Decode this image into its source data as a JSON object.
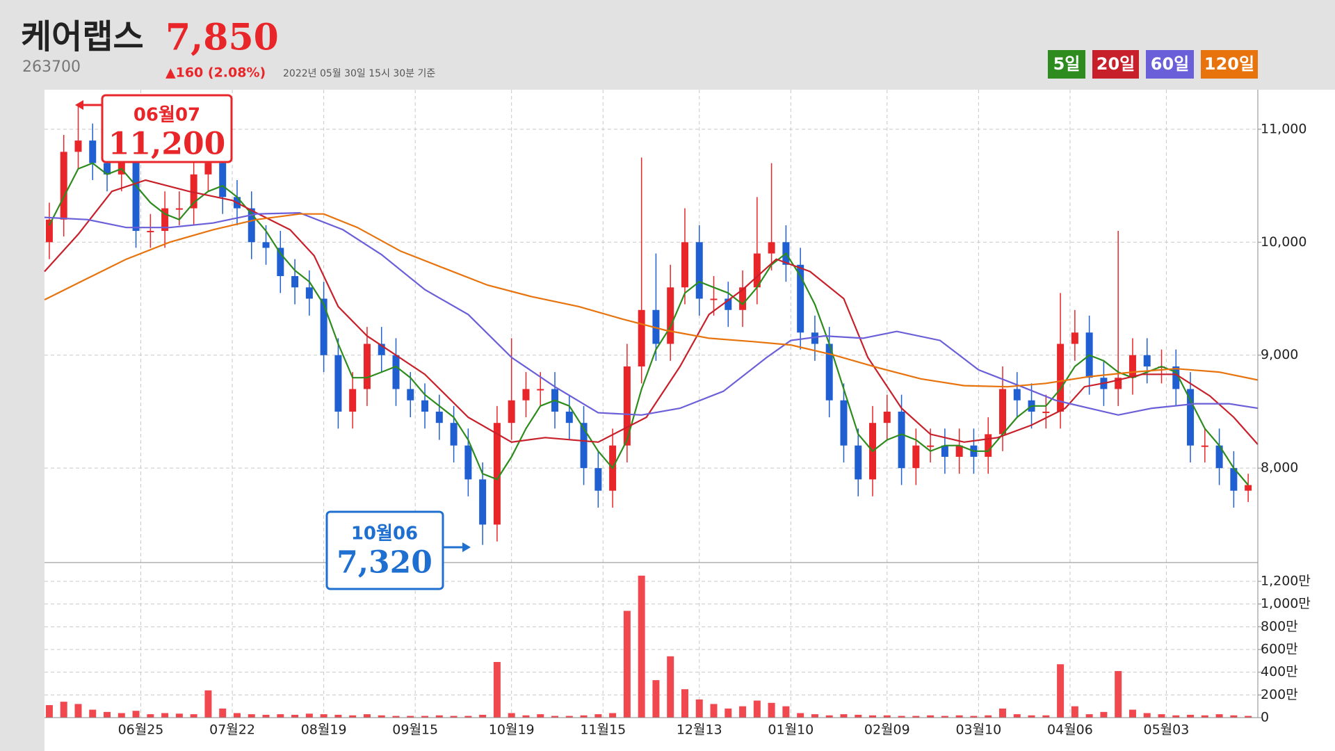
{
  "header": {
    "name": "케어랩스",
    "price": "7,850",
    "code": "263700",
    "change": "▲160 (2.08%)",
    "timestamp": "2022년 05월 30일 15시 30분 기준"
  },
  "chart_data": {
    "type": "candlestick",
    "up_color": "#e8262a",
    "down_color": "#1f5fd1",
    "volume_color": "#f0484e",
    "grid": true,
    "xlim": [
      0,
      252
    ],
    "xticks": [
      {
        "value": 20,
        "label": "06월25"
      },
      {
        "value": 39,
        "label": "07월22"
      },
      {
        "value": 58,
        "label": "08월19"
      },
      {
        "value": 77,
        "label": "09월15"
      },
      {
        "value": 97,
        "label": "10월19"
      },
      {
        "value": 116,
        "label": "11월15"
      },
      {
        "value": 136,
        "label": "12월13"
      },
      {
        "value": 155,
        "label": "01월10"
      },
      {
        "value": 175,
        "label": "02월09"
      },
      {
        "value": 194,
        "label": "03월10"
      },
      {
        "value": 213,
        "label": "04월06"
      },
      {
        "value": 233,
        "label": "05월03"
      }
    ],
    "ylim": [
      7170,
      11350
    ],
    "yticks": [
      {
        "value": 8000,
        "label": "8,000"
      },
      {
        "value": 9000,
        "label": "9,000"
      },
      {
        "value": 10000,
        "label": "10,000"
      },
      {
        "value": 11000,
        "label": "11,000"
      }
    ],
    "volume_ylim": [
      0,
      13530000
    ],
    "volume_yticks": [
      0,
      {
        "value": 2000000,
        "label": "200만"
      },
      {
        "value": 4000000,
        "label": "400만"
      },
      {
        "value": 6000000,
        "label": "600만"
      },
      {
        "value": 8000000,
        "label": "800만"
      },
      {
        "value": 10000000,
        "label": "1,000만"
      },
      {
        "value": 12000000,
        "label": "1,200만"
      }
    ],
    "candles": {
      "x": [
        1,
        4,
        7,
        10,
        13,
        16,
        19,
        22,
        25,
        28,
        31,
        34,
        37,
        40,
        43,
        46,
        49,
        52,
        55,
        58,
        61,
        64,
        67,
        70,
        73,
        76,
        79,
        82,
        85,
        88,
        91,
        94,
        97,
        100,
        103,
        106,
        109,
        112,
        115,
        118,
        121,
        124,
        127,
        130,
        133,
        136,
        139,
        142,
        145,
        148,
        151,
        154,
        157,
        160,
        163,
        166,
        169,
        172,
        175,
        178,
        181,
        184,
        187,
        190,
        193,
        196,
        199,
        202,
        205,
        208,
        211,
        214,
        217,
        220,
        223,
        226,
        229,
        232,
        235,
        238,
        241,
        244,
        247,
        250
      ],
      "open": [
        10000,
        10200,
        10800,
        10900,
        10700,
        10600,
        10800,
        10100,
        10100,
        10300,
        10300,
        10600,
        10700,
        10400,
        10300,
        10000,
        9950,
        9700,
        9600,
        9500,
        9000,
        8500,
        8700,
        9100,
        9000,
        8700,
        8600,
        8500,
        8400,
        8200,
        7900,
        7500,
        8400,
        8600,
        8700,
        8700,
        8500,
        8400,
        8000,
        7800,
        8200,
        8900,
        9400,
        9100,
        9600,
        10000,
        9500,
        9500,
        9400,
        9600,
        9900,
        10000,
        9800,
        9200,
        9100,
        8600,
        8200,
        7900,
        8400,
        8500,
        8000,
        8200,
        8200,
        8100,
        8200,
        8100,
        8300,
        8700,
        8600,
        8500,
        8500,
        9100,
        9200,
        8800,
        8700,
        8800,
        9000,
        8900,
        8900,
        8700,
        8200,
        8200,
        8000,
        7800
      ],
      "high": [
        10350,
        10950,
        11200,
        11050,
        10850,
        10950,
        10950,
        10250,
        10450,
        10450,
        10750,
        10850,
        10850,
        10550,
        10450,
        10150,
        10100,
        9850,
        9750,
        9650,
        9150,
        8850,
        9250,
        9250,
        9150,
        8850,
        8750,
        8650,
        8550,
        8350,
        8050,
        8550,
        9150,
        8850,
        8850,
        8850,
        8650,
        8550,
        8150,
        8350,
        9100,
        10750,
        9900,
        9800,
        10300,
        10150,
        9700,
        9650,
        9750,
        10400,
        10700,
        10150,
        9950,
        9350,
        9250,
        8750,
        8350,
        8550,
        8650,
        8650,
        8350,
        8350,
        8350,
        8350,
        8350,
        8450,
        8900,
        8850,
        8750,
        8650,
        9550,
        9400,
        9350,
        8950,
        10100,
        9150,
        9150,
        9050,
        9050,
        8850,
        8350,
        8350,
        8150,
        7950
      ],
      "low": [
        9850,
        10050,
        10650,
        10550,
        10450,
        10450,
        9950,
        9950,
        9950,
        10150,
        10150,
        10450,
        10250,
        10150,
        9850,
        9800,
        9550,
        9450,
        9350,
        8850,
        8350,
        8350,
        8550,
        8850,
        8550,
        8450,
        8350,
        8250,
        8050,
        7750,
        7320,
        7350,
        8250,
        8450,
        8550,
        8350,
        8250,
        7850,
        7650,
        7650,
        8050,
        8750,
        8950,
        8950,
        9450,
        9350,
        9350,
        9250,
        9250,
        9450,
        9750,
        9650,
        9050,
        8950,
        8450,
        8050,
        7750,
        7750,
        8250,
        7850,
        7850,
        8050,
        7950,
        7950,
        7950,
        7950,
        8150,
        8450,
        8350,
        8350,
        8350,
        8950,
        8650,
        8550,
        8550,
        8650,
        8750,
        8750,
        8550,
        8050,
        8050,
        7850,
        7650,
        7700
      ],
      "close": [
        10200,
        10800,
        10900,
        10700,
        10600,
        10800,
        10100,
        10100,
        10300,
        10300,
        10600,
        10700,
        10400,
        10300,
        10000,
        9950,
        9700,
        9600,
        9500,
        9000,
        8500,
        8700,
        9100,
        9000,
        8700,
        8600,
        8500,
        8400,
        8200,
        7900,
        7500,
        8400,
        8600,
        8700,
        8700,
        8500,
        8400,
        8000,
        7800,
        8200,
        8900,
        9400,
        9100,
        9600,
        10000,
        9500,
        9500,
        9400,
        9600,
        9900,
        10000,
        9800,
        9200,
        9100,
        8600,
        8200,
        7900,
        8400,
        8500,
        8000,
        8200,
        8200,
        8100,
        8200,
        8100,
        8300,
        8700,
        8600,
        8500,
        8500,
        9100,
        9200,
        8800,
        8700,
        8800,
        9000,
        8900,
        8900,
        8700,
        8200,
        8200,
        8000,
        7800,
        7850
      ],
      "volume": [
        1100000,
        1400000,
        1200000,
        700000,
        500000,
        400000,
        600000,
        300000,
        400000,
        350000,
        300000,
        2400000,
        800000,
        400000,
        300000,
        250000,
        300000,
        250000,
        350000,
        300000,
        250000,
        200000,
        300000,
        200000,
        150000,
        150000,
        150000,
        200000,
        150000,
        150000,
        250000,
        4900000,
        400000,
        200000,
        300000,
        150000,
        150000,
        200000,
        300000,
        400000,
        9400000,
        12500000,
        3300000,
        5400000,
        2500000,
        1600000,
        1200000,
        800000,
        1000000,
        1500000,
        1300000,
        1000000,
        400000,
        300000,
        200000,
        300000,
        250000,
        200000,
        200000,
        150000,
        150000,
        200000,
        150000,
        200000,
        150000,
        200000,
        800000,
        300000,
        200000,
        200000,
        4700000,
        1000000,
        300000,
        500000,
        4100000,
        700000,
        400000,
        300000,
        200000,
        250000,
        200000,
        300000,
        200000,
        150000
      ]
    },
    "series": [
      {
        "name": "5일",
        "color": "#2e8b1e",
        "x": [
          1,
          4,
          7,
          10,
          13,
          16,
          19,
          22,
          25,
          28,
          31,
          34,
          37,
          40,
          43,
          46,
          49,
          52,
          55,
          58,
          61,
          64,
          67,
          70,
          73,
          76,
          79,
          82,
          85,
          88,
          91,
          94,
          97,
          100,
          103,
          106,
          109,
          112,
          115,
          118,
          121,
          124,
          127,
          130,
          133,
          136,
          139,
          142,
          145,
          148,
          151,
          154,
          157,
          160,
          163,
          166,
          169,
          172,
          175,
          178,
          181,
          184,
          187,
          190,
          193,
          196,
          199,
          202,
          205,
          208,
          211,
          214,
          217,
          220,
          223,
          226,
          229,
          232,
          235,
          238,
          241,
          244,
          247,
          250
        ],
        "values": [
          10150,
          10400,
          10650,
          10700,
          10600,
          10650,
          10500,
          10350,
          10250,
          10200,
          10350,
          10450,
          10500,
          10400,
          10250,
          10100,
          9900,
          9750,
          9650,
          9450,
          9100,
          8800,
          8800,
          8850,
          8900,
          8800,
          8650,
          8550,
          8450,
          8250,
          7950,
          7900,
          8100,
          8350,
          8550,
          8600,
          8550,
          8350,
          8150,
          8000,
          8250,
          8700,
          9050,
          9250,
          9550,
          9650,
          9600,
          9550,
          9450,
          9600,
          9800,
          9900,
          9700,
          9450,
          9100,
          8700,
          8300,
          8150,
          8250,
          8300,
          8250,
          8150,
          8200,
          8200,
          8150,
          8150,
          8300,
          8450,
          8550,
          8550,
          8700,
          8900,
          9000,
          8950,
          8850,
          8800,
          8850,
          8900,
          8850,
          8600,
          8350,
          8200,
          8000,
          7850
        ]
      },
      {
        "name": "20일",
        "color": "#c8202a",
        "x": [
          0,
          7,
          14,
          21,
          30,
          39,
          44,
          51,
          56,
          61,
          67,
          79,
          88,
          97,
          104,
          115,
          125,
          132,
          138,
          145,
          152,
          159,
          166,
          171,
          178,
          184,
          191,
          198,
          205,
          212,
          216,
          221,
          228,
          235,
          242,
          247,
          252
        ],
        "values": [
          9740,
          10070,
          10450,
          10550,
          10450,
          10370,
          10260,
          10110,
          9880,
          9430,
          9170,
          8830,
          8450,
          8230,
          8270,
          8230,
          8450,
          8900,
          9360,
          9580,
          9850,
          9740,
          9500,
          8980,
          8530,
          8300,
          8230,
          8270,
          8380,
          8530,
          8720,
          8760,
          8830,
          8830,
          8640,
          8450,
          8210
        ]
      },
      {
        "name": "60일",
        "color": "#6a5fd8",
        "x": [
          0,
          9,
          17,
          26,
          35,
          44,
          53,
          62,
          70,
          79,
          88,
          97,
          106,
          115,
          124,
          132,
          141,
          150,
          155,
          162,
          170,
          177,
          186,
          194,
          203,
          210,
          217,
          223,
          230,
          239,
          246,
          252
        ],
        "values": [
          10220,
          10200,
          10130,
          10130,
          10170,
          10250,
          10260,
          10110,
          9890,
          9580,
          9360,
          8980,
          8720,
          8490,
          8470,
          8530,
          8680,
          8980,
          9130,
          9170,
          9150,
          9210,
          9130,
          8870,
          8720,
          8600,
          8530,
          8470,
          8530,
          8570,
          8570,
          8530
        ]
      },
      {
        "name": "120일",
        "color": "#e8730c",
        "x": [
          0,
          8,
          17,
          26,
          35,
          44,
          53,
          58,
          65,
          74,
          83,
          92,
          101,
          111,
          120,
          129,
          138,
          147,
          155,
          164,
          173,
          182,
          191,
          200,
          208,
          217,
          226,
          235,
          244,
          252
        ],
        "values": [
          9490,
          9660,
          9850,
          10000,
          10110,
          10200,
          10250,
          10250,
          10130,
          9920,
          9770,
          9620,
          9520,
          9430,
          9320,
          9220,
          9150,
          9120,
          9090,
          9000,
          8890,
          8790,
          8730,
          8720,
          8750,
          8810,
          8850,
          8880,
          8850,
          8780
        ]
      }
    ],
    "annotations": [
      {
        "date": "06월07",
        "text": "11,200"
      },
      {
        "date": "10월06",
        "text": "7,320"
      }
    ]
  }
}
